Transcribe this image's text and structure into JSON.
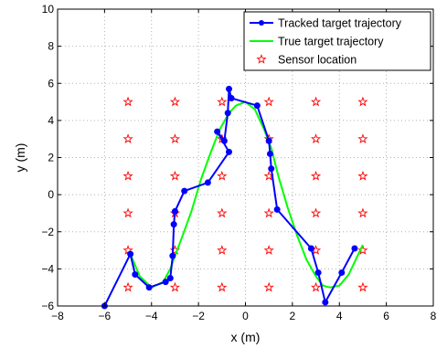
{
  "chart_data": {
    "type": "line",
    "xlabel": "x (m)",
    "ylabel": "y (m)",
    "xlim": [
      -8,
      8
    ],
    "ylim": [
      -6,
      10
    ],
    "xticks": [
      -8,
      -6,
      -4,
      -2,
      0,
      2,
      4,
      6,
      8
    ],
    "yticks": [
      -6,
      -4,
      -2,
      0,
      2,
      4,
      6,
      8,
      10
    ],
    "xtick_labels": [
      "−8",
      "−6",
      "−4",
      "−2",
      "0",
      "2",
      "4",
      "6",
      "8"
    ],
    "ytick_labels": [
      "−6",
      "−4",
      "−2",
      "0",
      "2",
      "4",
      "6",
      "8",
      "10"
    ],
    "grid": true,
    "legend_position": "top-right",
    "series": [
      {
        "name": "Tracked target trajectory",
        "color": "#0000ff",
        "marker": "circle",
        "x": [
          -6.0,
          -4.9,
          -4.7,
          -4.1,
          -3.4,
          -3.2,
          -3.1,
          -3.05,
          -3.0,
          -2.6,
          -1.6,
          -0.7,
          -1.2,
          -0.9,
          -0.75,
          -0.7,
          -0.6,
          0.5,
          1.0,
          1.05,
          1.1,
          1.35,
          2.8,
          3.1,
          3.4,
          4.1,
          4.65
        ],
        "y": [
          -6.0,
          -3.2,
          -4.3,
          -5.0,
          -4.7,
          -4.5,
          -3.3,
          -1.6,
          -0.9,
          0.2,
          0.65,
          2.3,
          3.4,
          2.9,
          4.4,
          5.7,
          5.2,
          4.8,
          2.9,
          2.2,
          1.4,
          -0.8,
          -2.9,
          -4.2,
          -5.8,
          -4.2,
          -2.9
        ]
      },
      {
        "name": "True target trajectory",
        "color": "#00ff00",
        "marker": "none",
        "x": [
          -4.9,
          -4.5,
          -4.0,
          -3.5,
          -3.2,
          -3.0,
          -2.7,
          -2.3,
          -1.9,
          -1.5,
          -1.1,
          -0.7,
          -0.4,
          0.0,
          0.4,
          0.8,
          1.1,
          1.4,
          1.8,
          2.2,
          2.6,
          3.0,
          3.3,
          3.6,
          4.0,
          4.4,
          4.7,
          5.0
        ],
        "y": [
          -3.2,
          -4.4,
          -5.0,
          -4.7,
          -4.0,
          -3.3,
          -2.3,
          -0.9,
          0.8,
          2.2,
          3.5,
          4.4,
          4.8,
          5.0,
          4.6,
          3.5,
          2.5,
          1.0,
          -0.7,
          -2.2,
          -3.5,
          -4.4,
          -4.9,
          -5.0,
          -4.9,
          -4.3,
          -3.5,
          -2.7
        ]
      },
      {
        "name": "Sensor location",
        "color": "#ff0000",
        "marker": "star",
        "x": [
          -5,
          -3,
          -1,
          1,
          3,
          5,
          -5,
          -3,
          -1,
          1,
          3,
          5,
          -5,
          -3,
          -1,
          1,
          3,
          5,
          -5,
          -3,
          -1,
          1,
          3,
          5,
          -5,
          -3,
          -1,
          1,
          3,
          5,
          -5,
          -3,
          -1,
          1,
          3,
          5
        ],
        "y": [
          5,
          5,
          5,
          5,
          5,
          5,
          3,
          3,
          3,
          3,
          3,
          3,
          1,
          1,
          1,
          1,
          1,
          1,
          -1,
          -1,
          -1,
          -1,
          -1,
          -1,
          -3,
          -3,
          -3,
          -3,
          -3,
          -3,
          -5,
          -5,
          -5,
          -5,
          -5,
          -5
        ]
      }
    ]
  }
}
